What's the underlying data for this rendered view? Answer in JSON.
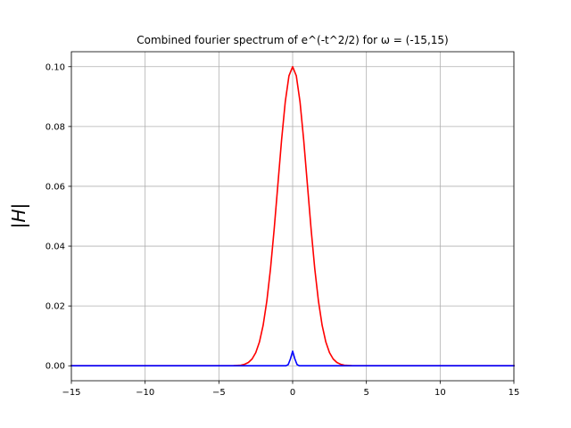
{
  "chart_data": {
    "type": "line",
    "title": "Combined fourier spectrum of  e^(-t^2/2) for ω = (-15,15)",
    "xlabel": "",
    "ylabel": "|H|",
    "xlim": [
      -15,
      15
    ],
    "ylim": [
      -0.005,
      0.105
    ],
    "grid": true,
    "xticks": [
      -15,
      -10,
      -5,
      0,
      5,
      10,
      15
    ],
    "xtick_labels": [
      "−15",
      "−10",
      "−5",
      "0",
      "5",
      "10",
      "15"
    ],
    "yticks": [
      0.0,
      0.02,
      0.04,
      0.06,
      0.08,
      0.1
    ],
    "ytick_labels": [
      "0.00",
      "0.02",
      "0.04",
      "0.06",
      "0.08",
      "0.10"
    ],
    "series": [
      {
        "color": "#ff0000",
        "x": [
          -15,
          -5,
          -4.5,
          -4,
          -3.5,
          -3.25,
          -3,
          -2.75,
          -2.5,
          -2.25,
          -2,
          -1.75,
          -1.5,
          -1.25,
          -1,
          -0.75,
          -0.5,
          -0.25,
          0,
          0.25,
          0.5,
          0.75,
          1,
          1.25,
          1.5,
          1.75,
          2,
          2.25,
          2.5,
          2.75,
          3,
          3.25,
          3.5,
          4,
          4.5,
          5,
          15
        ],
        "y": [
          0,
          0,
          4e-06,
          3.4e-05,
          0.00022,
          0.00051,
          0.00111,
          0.00227,
          0.0044,
          0.00796,
          0.01353,
          0.02163,
          0.03247,
          0.04578,
          0.06065,
          0.07548,
          0.08825,
          0.09692,
          0.1,
          0.09692,
          0.08825,
          0.07548,
          0.06065,
          0.04578,
          0.03247,
          0.02163,
          0.01353,
          0.00796,
          0.0044,
          0.00227,
          0.00111,
          0.00051,
          0.00022,
          3.4e-05,
          4e-06,
          0,
          0
        ]
      },
      {
        "color": "#0000ff",
        "x": [
          -15,
          -0.45,
          -0.3,
          -0.15,
          0,
          0.15,
          0.3,
          0.45,
          15
        ],
        "y": [
          0,
          0,
          0.0004,
          0.0023,
          0.0049,
          0.0023,
          0.0004,
          0,
          0
        ]
      }
    ]
  }
}
